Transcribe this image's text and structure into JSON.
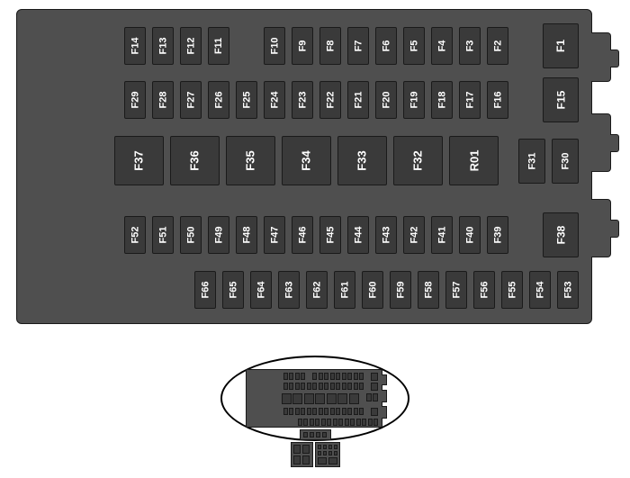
{
  "diagram": {
    "type": "fusebox-layout",
    "background_color": "#ffffff",
    "panel_color": "#4f4f4f",
    "fuse_color": "#3a3a3a",
    "border_color": "#1a1a1a",
    "label_color": "#ffffff",
    "label_fontsize_small": 11,
    "label_fontsize_large": 13,
    "rows": {
      "row1": {
        "slots": [
          "F1",
          "",
          "F2",
          "F3",
          "F4",
          "F5",
          "F6",
          "F7",
          "F8",
          "F9",
          "F10",
          "",
          "F11",
          "F12",
          "F13",
          "F14"
        ],
        "special": {
          "F1": "big"
        }
      },
      "row2": {
        "slots": [
          "F15",
          "",
          "F16",
          "F17",
          "F18",
          "F19",
          "F20",
          "F21",
          "F22",
          "F23",
          "F24",
          "F25",
          "F26",
          "F27",
          "F28",
          "F29"
        ],
        "special": {
          "F15": "big"
        }
      },
      "row3": {
        "slots": [
          "F30",
          "F31",
          "",
          "R01",
          "F32",
          "F33",
          "F34",
          "F35",
          "F36",
          "F37"
        ],
        "sizes": {
          "F30": "med",
          "F31": "med",
          "R01": "large",
          "F32": "large",
          "F33": "large",
          "F34": "large",
          "F35": "large",
          "F36": "large",
          "F37": "large"
        }
      },
      "row4": {
        "slots": [
          "F38",
          "",
          "F39",
          "F40",
          "F41",
          "F42",
          "F43",
          "F44",
          "F45",
          "F46",
          "F47",
          "F48",
          "F49",
          "F50",
          "F51",
          "F52"
        ],
        "special": {
          "F38": "big"
        }
      },
      "row5": {
        "slots": [
          "F53",
          "F54",
          "F55",
          "F56",
          "F57",
          "F58",
          "F59",
          "F60",
          "F61",
          "F62",
          "F63",
          "F64",
          "F65",
          "F66"
        ]
      }
    }
  }
}
